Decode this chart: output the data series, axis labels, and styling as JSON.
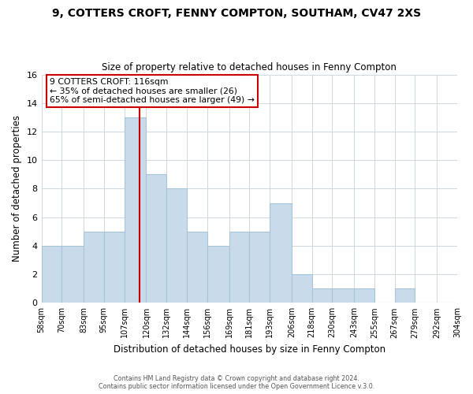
{
  "title": "9, COTTERS CROFT, FENNY COMPTON, SOUTHAM, CV47 2XS",
  "subtitle": "Size of property relative to detached houses in Fenny Compton",
  "xlabel": "Distribution of detached houses by size in Fenny Compton",
  "ylabel": "Number of detached properties",
  "bin_labels": [
    "58sqm",
    "70sqm",
    "83sqm",
    "95sqm",
    "107sqm",
    "120sqm",
    "132sqm",
    "144sqm",
    "156sqm",
    "169sqm",
    "181sqm",
    "193sqm",
    "206sqm",
    "218sqm",
    "230sqm",
    "243sqm",
    "255sqm",
    "267sqm",
    "279sqm",
    "292sqm",
    "304sqm"
  ],
  "bar_values": [
    4,
    4,
    5,
    5,
    13,
    9,
    8,
    5,
    4,
    5,
    5,
    7,
    2,
    1,
    1,
    1,
    0,
    1,
    0,
    0,
    0
  ],
  "bar_color": "#c9daea",
  "bar_edge_color": "#a8c4d8",
  "property_line_label": "9 COTTERS CROFT: 116sqm",
  "annotation_line1": "← 35% of detached houses are smaller (26)",
  "annotation_line2": "65% of semi-detached houses are larger (49) →",
  "annotation_box_color": "#ffffff",
  "annotation_box_edge": "#cc0000",
  "vline_color": "#cc0000",
  "vline_x": 116,
  "ylim": [
    0,
    16
  ],
  "yticks": [
    0,
    2,
    4,
    6,
    8,
    10,
    12,
    14,
    16
  ],
  "bin_edges": [
    58,
    70,
    83,
    95,
    107,
    120,
    132,
    144,
    156,
    169,
    181,
    193,
    206,
    218,
    230,
    243,
    255,
    267,
    279,
    292,
    304
  ],
  "footer1": "Contains HM Land Registry data © Crown copyright and database right 2024.",
  "footer2": "Contains public sector information licensed under the Open Government Licence v.3.0.",
  "background_color": "#ffffff",
  "grid_color": "#d0d8e0"
}
